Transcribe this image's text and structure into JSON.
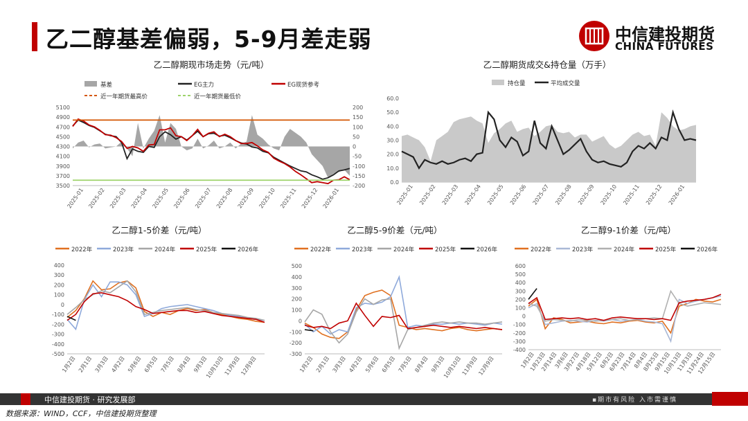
{
  "page": {
    "title": "乙二醇基差偏弱，5-9月差走弱",
    "logo_cn": "中信建投期货",
    "logo_en": "CHINA FUTURES",
    "footer_left": "中信建投期货 · 研究发展部",
    "footer_right": "▪期市有风险  入市需谨慎",
    "source": "数据来源：WIND，CCF，中信建投期货整理"
  },
  "colors": {
    "accent": "#c00000",
    "dark": "#333333"
  },
  "chart_data": [
    {
      "id": "spot",
      "type": "line",
      "title": "乙二醇期现市场走势（元/吨）",
      "x_ticks": [
        "2025-01",
        "2025-02",
        "2025-03",
        "2025-04",
        "2025-05",
        "2025-06",
        "2025-07",
        "2025-08",
        "2025-09",
        "2025-10",
        "2025-11",
        "2025-12",
        "2026-01"
      ],
      "ylim": [
        3500,
        5100
      ],
      "y_ticks": [
        3500,
        3700,
        3900,
        4100,
        4300,
        4500,
        4700,
        4900,
        5100
      ],
      "y2lim": [
        -200,
        200
      ],
      "y2_ticks": [
        -200,
        -150,
        -100,
        -50,
        0,
        50,
        100,
        150,
        200
      ],
      "legend": [
        "基差",
        "EG主力",
        "EG现货参考",
        "近一年期货最高价",
        "近一年期货最低价"
      ],
      "series": [
        {
          "name": "基差",
          "axis": "right",
          "type": "area",
          "color": "#a6a6a6",
          "values": [
            -10,
            20,
            30,
            -5,
            10,
            15,
            -10,
            -5,
            0,
            25,
            -10,
            -50,
            120,
            -10,
            40,
            80,
            160,
            20,
            120,
            90,
            0,
            -20,
            -10,
            40,
            -10,
            5,
            30,
            -10,
            0,
            20,
            -10,
            15,
            25,
            160,
            60,
            40,
            10,
            -10,
            -20,
            50,
            90,
            70,
            50,
            20,
            -40,
            -70,
            -100,
            -160,
            -140,
            -130,
            -120,
            -150
          ]
        },
        {
          "name": "EG主力",
          "axis": "left",
          "color": "#222222",
          "values": [
            4720,
            4840,
            4790,
            4730,
            4690,
            4620,
            4550,
            4520,
            4500,
            4380,
            4050,
            4250,
            4200,
            4180,
            4300,
            4280,
            4500,
            4600,
            4540,
            4450,
            4500,
            4430,
            4520,
            4610,
            4500,
            4560,
            4570,
            4510,
            4530,
            4480,
            4420,
            4370,
            4350,
            4290,
            4270,
            4200,
            4170,
            4080,
            4020,
            3960,
            3900,
            3850,
            3800,
            3780,
            3720,
            3680,
            3630,
            3660,
            3720,
            3800,
            3820,
            3850
          ]
        },
        {
          "name": "EG现货参考",
          "axis": "left",
          "color": "#c00000",
          "values": [
            4710,
            4860,
            4820,
            4740,
            4700,
            4630,
            4540,
            4530,
            4480,
            4400,
            4260,
            4300,
            4270,
            4200,
            4330,
            4340,
            4640,
            4640,
            4680,
            4520,
            4500,
            4420,
            4520,
            4650,
            4500,
            4570,
            4600,
            4500,
            4550,
            4500,
            4420,
            4360,
            4360,
            4380,
            4310,
            4230,
            4180,
            4060,
            4000,
            3950,
            3880,
            3790,
            3720,
            3640,
            3560,
            3580,
            3560,
            3540,
            3610,
            3620,
            3680,
            3620
          ]
        },
        {
          "name": "近一年期货最高价",
          "axis": "left",
          "color": "#d45500",
          "constant": 4840
        },
        {
          "name": "近一年期货最低价",
          "axis": "left",
          "color": "#9ed36a",
          "constant": 3610
        }
      ]
    },
    {
      "id": "volume",
      "type": "area",
      "title": "乙二醇期货成交&持仓量（万手）",
      "x_ticks": [
        "2025-01",
        "2025-02",
        "2025-03",
        "2025-04",
        "2025-05",
        "2025-06",
        "2025-07",
        "2025-08",
        "2025-09",
        "2025-10",
        "2025-11",
        "2025-12",
        "2026-01"
      ],
      "ylim": [
        0,
        60
      ],
      "y_ticks": [
        0.0,
        10.0,
        20.0,
        30.0,
        40.0,
        50.0,
        60.0
      ],
      "legend": [
        "持仓量",
        "平均成交量"
      ],
      "series": [
        {
          "name": "持仓量",
          "type": "area",
          "color": "#c9c9c9",
          "values": [
            33,
            34,
            32,
            30,
            25,
            15,
            30,
            33,
            36,
            43,
            45,
            46,
            47,
            44,
            42,
            28,
            35,
            38,
            42,
            44,
            36,
            38,
            39,
            33,
            36,
            40,
            41,
            36,
            35,
            36,
            32,
            34,
            34,
            29,
            31,
            33,
            27,
            24,
            26,
            30,
            34,
            36,
            33,
            34,
            26,
            50,
            46,
            40,
            37,
            38,
            40,
            41
          ]
        },
        {
          "name": "平均成交量",
          "type": "line",
          "color": "#222222",
          "values": [
            22,
            20,
            18,
            10,
            16,
            14,
            13,
            15,
            13,
            14,
            16,
            17,
            15,
            20,
            21,
            50,
            45,
            30,
            25,
            32,
            29,
            19,
            22,
            44,
            28,
            24,
            40,
            30,
            20,
            23,
            27,
            31,
            22,
            16,
            14,
            15,
            13,
            12,
            11,
            14,
            22,
            26,
            24,
            28,
            24,
            32,
            30,
            50,
            38,
            30,
            31,
            30
          ]
        }
      ]
    },
    {
      "id": "spread15",
      "type": "line",
      "title": "乙二醇1-5价差（元/吨）",
      "x_ticks": [
        "1月2日",
        "2月1日",
        "3月3日",
        "4月2日",
        "5月6日",
        "6月5日",
        "7月5日",
        "8月4日",
        "9月3日",
        "10月10日",
        "11月9日",
        "12月9日"
      ],
      "ylim": [
        -500,
        400
      ],
      "y_ticks": [
        -500,
        -400,
        -300,
        -200,
        -100,
        0,
        100,
        200,
        300,
        400
      ],
      "legend": [
        "2022年",
        "2023年",
        "2024年",
        "2025年",
        "2026年"
      ],
      "series": [
        {
          "name": "2022年",
          "color": "#e07020",
          "values": [
            -130,
            -60,
            60,
            240,
            150,
            160,
            220,
            240,
            170,
            -70,
            -120,
            -80,
            -100,
            -60,
            -40,
            -60,
            -50,
            -80,
            -100,
            -120,
            -140,
            -150,
            -170,
            -180
          ]
        },
        {
          "name": "2023年",
          "color": "#8ea9db",
          "values": [
            -150,
            -250,
            50,
            200,
            80,
            230,
            230,
            200,
            100,
            -120,
            -90,
            -40,
            -20,
            -10,
            0,
            -20,
            -40,
            -60,
            -90,
            -110,
            -120,
            -140,
            -150,
            -160
          ]
        },
        {
          "name": "2024年",
          "color": "#a6a6a6",
          "values": [
            -100,
            -30,
            50,
            100,
            140,
            120,
            180,
            240,
            130,
            -100,
            -80,
            -60,
            -50,
            -40,
            -30,
            -50,
            -60,
            -80,
            -90,
            -100,
            -110,
            -130,
            -140,
            -160
          ]
        },
        {
          "name": "2025年",
          "color": "#c00000",
          "values": [
            -160,
            -100,
            30,
            110,
            120,
            100,
            80,
            40,
            -20,
            -50,
            -90,
            -80,
            -70,
            -60,
            -60,
            -80,
            -70,
            -90,
            -110,
            -120,
            -130,
            -140,
            -150,
            -180
          ]
        },
        {
          "name": "2026年",
          "color": "#111111",
          "values": [
            -120,
            -160
          ]
        }
      ]
    },
    {
      "id": "spread59",
      "type": "line",
      "title": "乙二醇5-9价差（元/吨）",
      "x_ticks": [
        "1月2日",
        "2月1日",
        "3月3日",
        "4月2日",
        "5月6日",
        "6月5日",
        "7月5日",
        "8月4日",
        "9月3日",
        "10月10日",
        "11月9日",
        "12月9日"
      ],
      "ylim": [
        -300,
        500
      ],
      "y_ticks": [
        -300,
        -200,
        -100,
        0,
        100,
        200,
        300,
        400,
        500
      ],
      "legend": [
        "2022年",
        "2023年",
        "2024年",
        "2025年",
        "2026年"
      ],
      "series": [
        {
          "name": "2022年",
          "color": "#e07020",
          "values": [
            -20,
            -60,
            -120,
            -150,
            -160,
            -100,
            100,
            230,
            260,
            280,
            230,
            -40,
            -60,
            -80,
            -70,
            -80,
            -90,
            -70,
            -60,
            -80,
            -90,
            -80,
            -70,
            -80
          ]
        },
        {
          "name": "2023年",
          "color": "#8ea9db",
          "values": [
            -30,
            -100,
            -50,
            -120,
            -80,
            -100,
            120,
            160,
            150,
            170,
            220,
            400,
            -60,
            -40,
            -50,
            -30,
            -30,
            -20,
            -30,
            -20,
            -30,
            -40,
            -20,
            -30
          ]
        },
        {
          "name": "2024年",
          "color": "#a6a6a6",
          "values": [
            -10,
            100,
            60,
            -100,
            -200,
            -120,
            80,
            200,
            150,
            190,
            200,
            -250,
            -80,
            -60,
            -40,
            -20,
            -10,
            -20,
            -10,
            -20,
            -20,
            -30,
            -20,
            -10
          ]
        },
        {
          "name": "2025年",
          "color": "#c00000",
          "values": [
            -40,
            -60,
            -50,
            -70,
            -20,
            0,
            160,
            50,
            -50,
            40,
            30,
            50,
            -70,
            -60,
            -50,
            -40,
            -50,
            -60,
            -50,
            -60,
            -70,
            -60,
            -70,
            -80
          ]
        },
        {
          "name": "2026年",
          "color": "#111111",
          "values": [
            -80,
            -90
          ]
        }
      ]
    },
    {
      "id": "spread91",
      "type": "line",
      "title": "乙二醇9-1价差（元/吨）",
      "x_ticks": [
        "1月2日",
        "1月23日",
        "2月14日",
        "3月6日",
        "3月27日",
        "4月18日",
        "5月12日",
        "6月2日",
        "6月23日",
        "7月14日",
        "8月4日",
        "8月25日",
        "9月15日",
        "10月13日",
        "11月3日",
        "11月24日",
        "12月15日"
      ],
      "ylim": [
        -400,
        600
      ],
      "y_ticks": [
        -400,
        -300,
        -200,
        -100,
        0,
        100,
        200,
        300,
        400,
        500,
        600
      ],
      "legend": [
        "2022年",
        "2023年",
        "2024年",
        "2025年",
        "2026年"
      ],
      "series": [
        {
          "name": "2022年",
          "color": "#e07020",
          "values": [
            120,
            200,
            -150,
            -20,
            -40,
            -80,
            -70,
            -60,
            -80,
            -90,
            -70,
            -80,
            -60,
            -50,
            -70,
            -80,
            -60,
            -200,
            120,
            150,
            200,
            180,
            170,
            200
          ]
        },
        {
          "name": "2023年",
          "color": "#a9b8d6",
          "values": [
            100,
            150,
            -100,
            -80,
            -60,
            -50,
            -60,
            -70,
            -50,
            -60,
            -40,
            -60,
            -50,
            -40,
            -60,
            -70,
            -90,
            -300,
            200,
            150,
            180,
            200,
            220,
            240
          ]
        },
        {
          "name": "2024年",
          "color": "#b0b0b0",
          "values": [
            150,
            120,
            -60,
            -40,
            -50,
            -60,
            -40,
            -50,
            -60,
            -50,
            -40,
            -30,
            -50,
            -40,
            -30,
            -20,
            -30,
            300,
            150,
            120,
            140,
            160,
            150,
            140
          ]
        },
        {
          "name": "2025年",
          "color": "#c00000",
          "values": [
            150,
            220,
            -40,
            -30,
            -20,
            -30,
            -20,
            -40,
            -30,
            -50,
            -20,
            -10,
            -20,
            -30,
            -30,
            -40,
            -30,
            -50,
            160,
            180,
            190,
            200,
            220,
            260
          ]
        },
        {
          "name": "2026年",
          "color": "#111111",
          "values": [
            200,
            330
          ]
        }
      ]
    }
  ]
}
